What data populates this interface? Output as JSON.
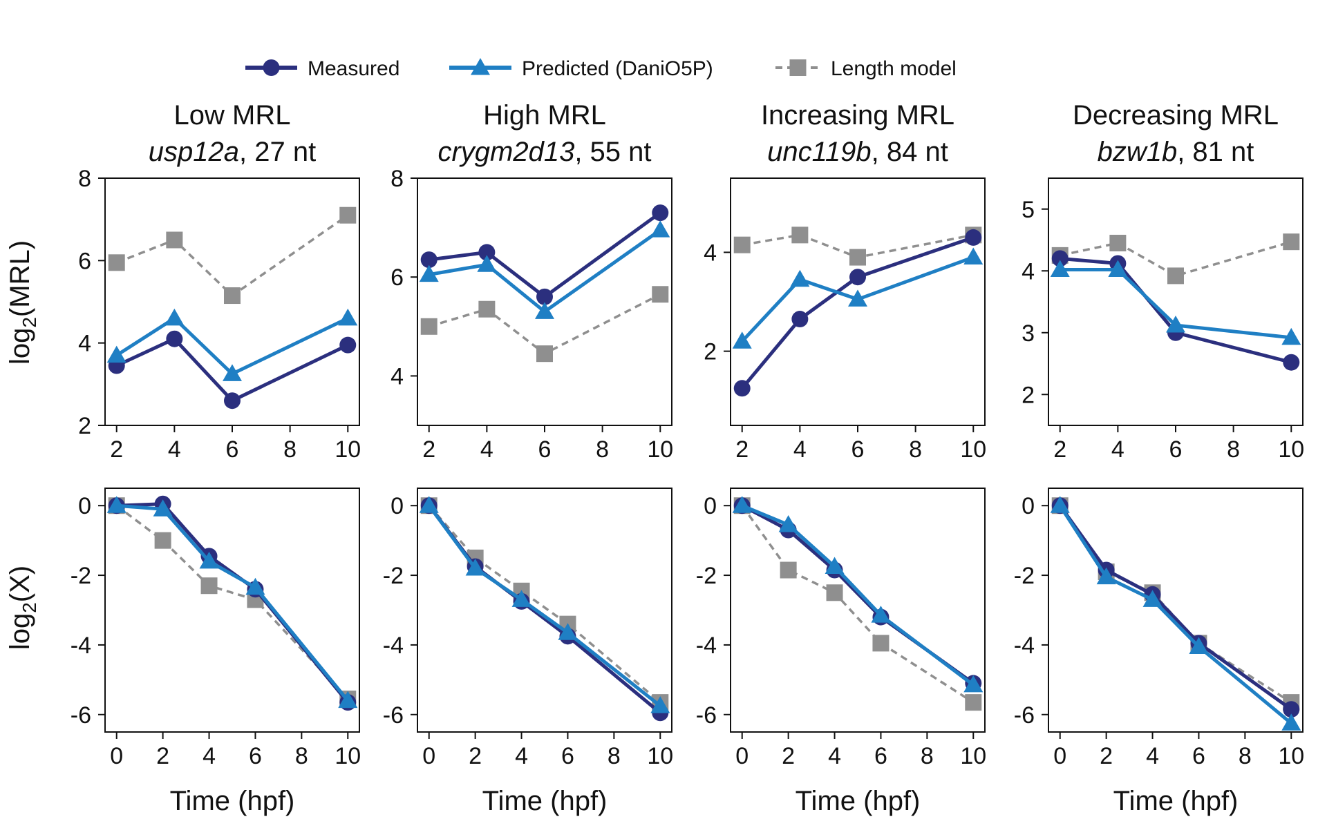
{
  "legend": [
    {
      "key": "measured",
      "label": "Measured",
      "color": "#2b2f7e",
      "marker": "circle",
      "dash": "solid"
    },
    {
      "key": "predicted",
      "label": "Predicted (DaniO5P)",
      "color": "#1f7fc4",
      "marker": "triangle",
      "dash": "solid"
    },
    {
      "key": "length",
      "label": "Length model",
      "color": "#8f8f8f",
      "marker": "square",
      "dash": "dashed"
    }
  ],
  "row_labels": {
    "top": {
      "pre": "log",
      "sub": "2",
      "post": "(MRL)"
    },
    "bottom": {
      "pre": "log",
      "sub": "2",
      "post": "(X)"
    }
  },
  "chart_data": [
    {
      "type": "line",
      "panel": "top",
      "column": 1,
      "title": "Low MRL",
      "gene": "usp12a",
      "gene_suffix": ", 27 nt",
      "xlabel": "",
      "ylabel": "log2(MRL)",
      "xlim": [
        1.6,
        10.4
      ],
      "ylim": [
        2,
        8
      ],
      "xticks": [
        2,
        4,
        6,
        8,
        10
      ],
      "yticks": [
        2,
        4,
        6,
        8
      ],
      "x": [
        2,
        4,
        6,
        10
      ],
      "series": [
        {
          "name": "Measured",
          "values": [
            3.45,
            4.1,
            2.6,
            3.95
          ]
        },
        {
          "name": "Predicted (DaniO5P)",
          "values": [
            3.7,
            4.6,
            3.25,
            4.6
          ]
        },
        {
          "name": "Length model",
          "values": [
            5.95,
            6.5,
            5.15,
            7.1
          ]
        }
      ]
    },
    {
      "type": "line",
      "panel": "top",
      "column": 2,
      "title": "High MRL",
      "gene": "crygm2d13",
      "gene_suffix": ", 55 nt",
      "xlabel": "",
      "ylabel": "",
      "xlim": [
        1.6,
        10.4
      ],
      "ylim": [
        3,
        8
      ],
      "xticks": [
        2,
        4,
        6,
        8,
        10
      ],
      "yticks": [
        4,
        6,
        8
      ],
      "x": [
        2,
        4,
        6,
        10
      ],
      "series": [
        {
          "name": "Measured",
          "values": [
            6.35,
            6.5,
            5.6,
            7.3
          ]
        },
        {
          "name": "Predicted (DaniO5P)",
          "values": [
            6.05,
            6.25,
            5.3,
            6.95
          ]
        },
        {
          "name": "Length model",
          "values": [
            5.0,
            5.35,
            4.45,
            5.65
          ]
        }
      ]
    },
    {
      "type": "line",
      "panel": "top",
      "column": 3,
      "title": "Increasing MRL",
      "gene": "unc119b",
      "gene_suffix": ", 84 nt",
      "xlabel": "",
      "ylabel": "",
      "xlim": [
        1.6,
        10.4
      ],
      "ylim": [
        0.5,
        5.5
      ],
      "xticks": [
        2,
        4,
        6,
        8,
        10
      ],
      "yticks": [
        2,
        4
      ],
      "x": [
        2,
        4,
        6,
        10
      ],
      "series": [
        {
          "name": "Measured",
          "values": [
            1.25,
            2.65,
            3.5,
            4.3
          ]
        },
        {
          "name": "Predicted (DaniO5P)",
          "values": [
            2.2,
            3.45,
            3.05,
            3.9
          ]
        },
        {
          "name": "Length model",
          "values": [
            4.15,
            4.35,
            3.9,
            4.35
          ]
        }
      ]
    },
    {
      "type": "line",
      "panel": "top",
      "column": 4,
      "title": "Decreasing MRL",
      "gene": "bzw1b",
      "gene_suffix": ", 81 nt",
      "xlabel": "",
      "ylabel": "",
      "xlim": [
        1.6,
        10.4
      ],
      "ylim": [
        1.5,
        5.5
      ],
      "xticks": [
        2,
        4,
        6,
        8,
        10
      ],
      "yticks": [
        2,
        3,
        4,
        5
      ],
      "x": [
        2,
        4,
        6,
        10
      ],
      "series": [
        {
          "name": "Measured",
          "values": [
            4.2,
            4.12,
            3.0,
            2.52
          ]
        },
        {
          "name": "Predicted (DaniO5P)",
          "values": [
            4.02,
            4.02,
            3.12,
            2.92
          ]
        },
        {
          "name": "Length model",
          "values": [
            4.25,
            4.45,
            3.92,
            4.47
          ]
        }
      ]
    },
    {
      "type": "line",
      "panel": "bottom",
      "column": 1,
      "title": "",
      "gene": "",
      "gene_suffix": "",
      "xlabel": "Time (hpf)",
      "ylabel": "log2(X)",
      "xlim": [
        -0.5,
        10.5
      ],
      "ylim": [
        -6.5,
        0.5
      ],
      "xticks": [
        0,
        2,
        4,
        6,
        8,
        10
      ],
      "yticks": [
        -6,
        -4,
        -2,
        0
      ],
      "x": [
        0,
        2,
        4,
        6,
        10
      ],
      "series": [
        {
          "name": "Measured",
          "values": [
            0.0,
            0.05,
            -1.45,
            -2.4,
            -5.65
          ]
        },
        {
          "name": "Predicted (DaniO5P)",
          "values": [
            0.0,
            -0.1,
            -1.6,
            -2.35,
            -5.6
          ]
        },
        {
          "name": "Length model",
          "values": [
            0.0,
            -1.0,
            -2.3,
            -2.7,
            -5.55
          ]
        }
      ]
    },
    {
      "type": "line",
      "panel": "bottom",
      "column": 2,
      "title": "",
      "gene": "",
      "gene_suffix": "",
      "xlabel": "Time (hpf)",
      "ylabel": "",
      "xlim": [
        -0.5,
        10.5
      ],
      "ylim": [
        -6.5,
        0.5
      ],
      "xticks": [
        0,
        2,
        4,
        6,
        8,
        10
      ],
      "yticks": [
        -6,
        -4,
        -2,
        0
      ],
      "x": [
        0,
        2,
        4,
        6,
        10
      ],
      "series": [
        {
          "name": "Measured",
          "values": [
            0.0,
            -1.75,
            -2.75,
            -3.75,
            -5.95
          ]
        },
        {
          "name": "Predicted (DaniO5P)",
          "values": [
            0.0,
            -1.8,
            -2.7,
            -3.65,
            -5.75
          ]
        },
        {
          "name": "Length model",
          "values": [
            0.0,
            -1.5,
            -2.45,
            -3.4,
            -5.65
          ]
        }
      ]
    },
    {
      "type": "line",
      "panel": "bottom",
      "column": 3,
      "title": "",
      "gene": "",
      "gene_suffix": "",
      "xlabel": "Time (hpf)",
      "ylabel": "",
      "xlim": [
        -0.5,
        10.5
      ],
      "ylim": [
        -6.5,
        0.5
      ],
      "xticks": [
        0,
        2,
        4,
        6,
        8,
        10
      ],
      "yticks": [
        -6,
        -4,
        -2,
        0
      ],
      "x": [
        0,
        2,
        4,
        6,
        10
      ],
      "series": [
        {
          "name": "Measured",
          "values": [
            0.0,
            -0.7,
            -1.85,
            -3.2,
            -5.1
          ]
        },
        {
          "name": "Predicted (DaniO5P)",
          "values": [
            0.0,
            -0.55,
            -1.75,
            -3.15,
            -5.15
          ]
        },
        {
          "name": "Length model",
          "values": [
            0.0,
            -1.85,
            -2.5,
            -3.95,
            -5.65
          ]
        }
      ]
    },
    {
      "type": "line",
      "panel": "bottom",
      "column": 4,
      "title": "",
      "gene": "",
      "gene_suffix": "",
      "xlabel": "Time (hpf)",
      "ylabel": "",
      "xlim": [
        -0.5,
        10.5
      ],
      "ylim": [
        -6.5,
        0.5
      ],
      "xticks": [
        0,
        2,
        4,
        6,
        8,
        10
      ],
      "yticks": [
        -6,
        -4,
        -2,
        0
      ],
      "x": [
        0,
        2,
        4,
        6,
        10
      ],
      "series": [
        {
          "name": "Measured",
          "values": [
            0.0,
            -1.85,
            -2.55,
            -3.95,
            -5.85
          ]
        },
        {
          "name": "Predicted (DaniO5P)",
          "values": [
            0.0,
            -2.05,
            -2.7,
            -4.05,
            -6.25
          ]
        },
        {
          "name": "Length model",
          "values": [
            0.0,
            -1.9,
            -2.5,
            -3.95,
            -5.65
          ]
        }
      ]
    }
  ]
}
